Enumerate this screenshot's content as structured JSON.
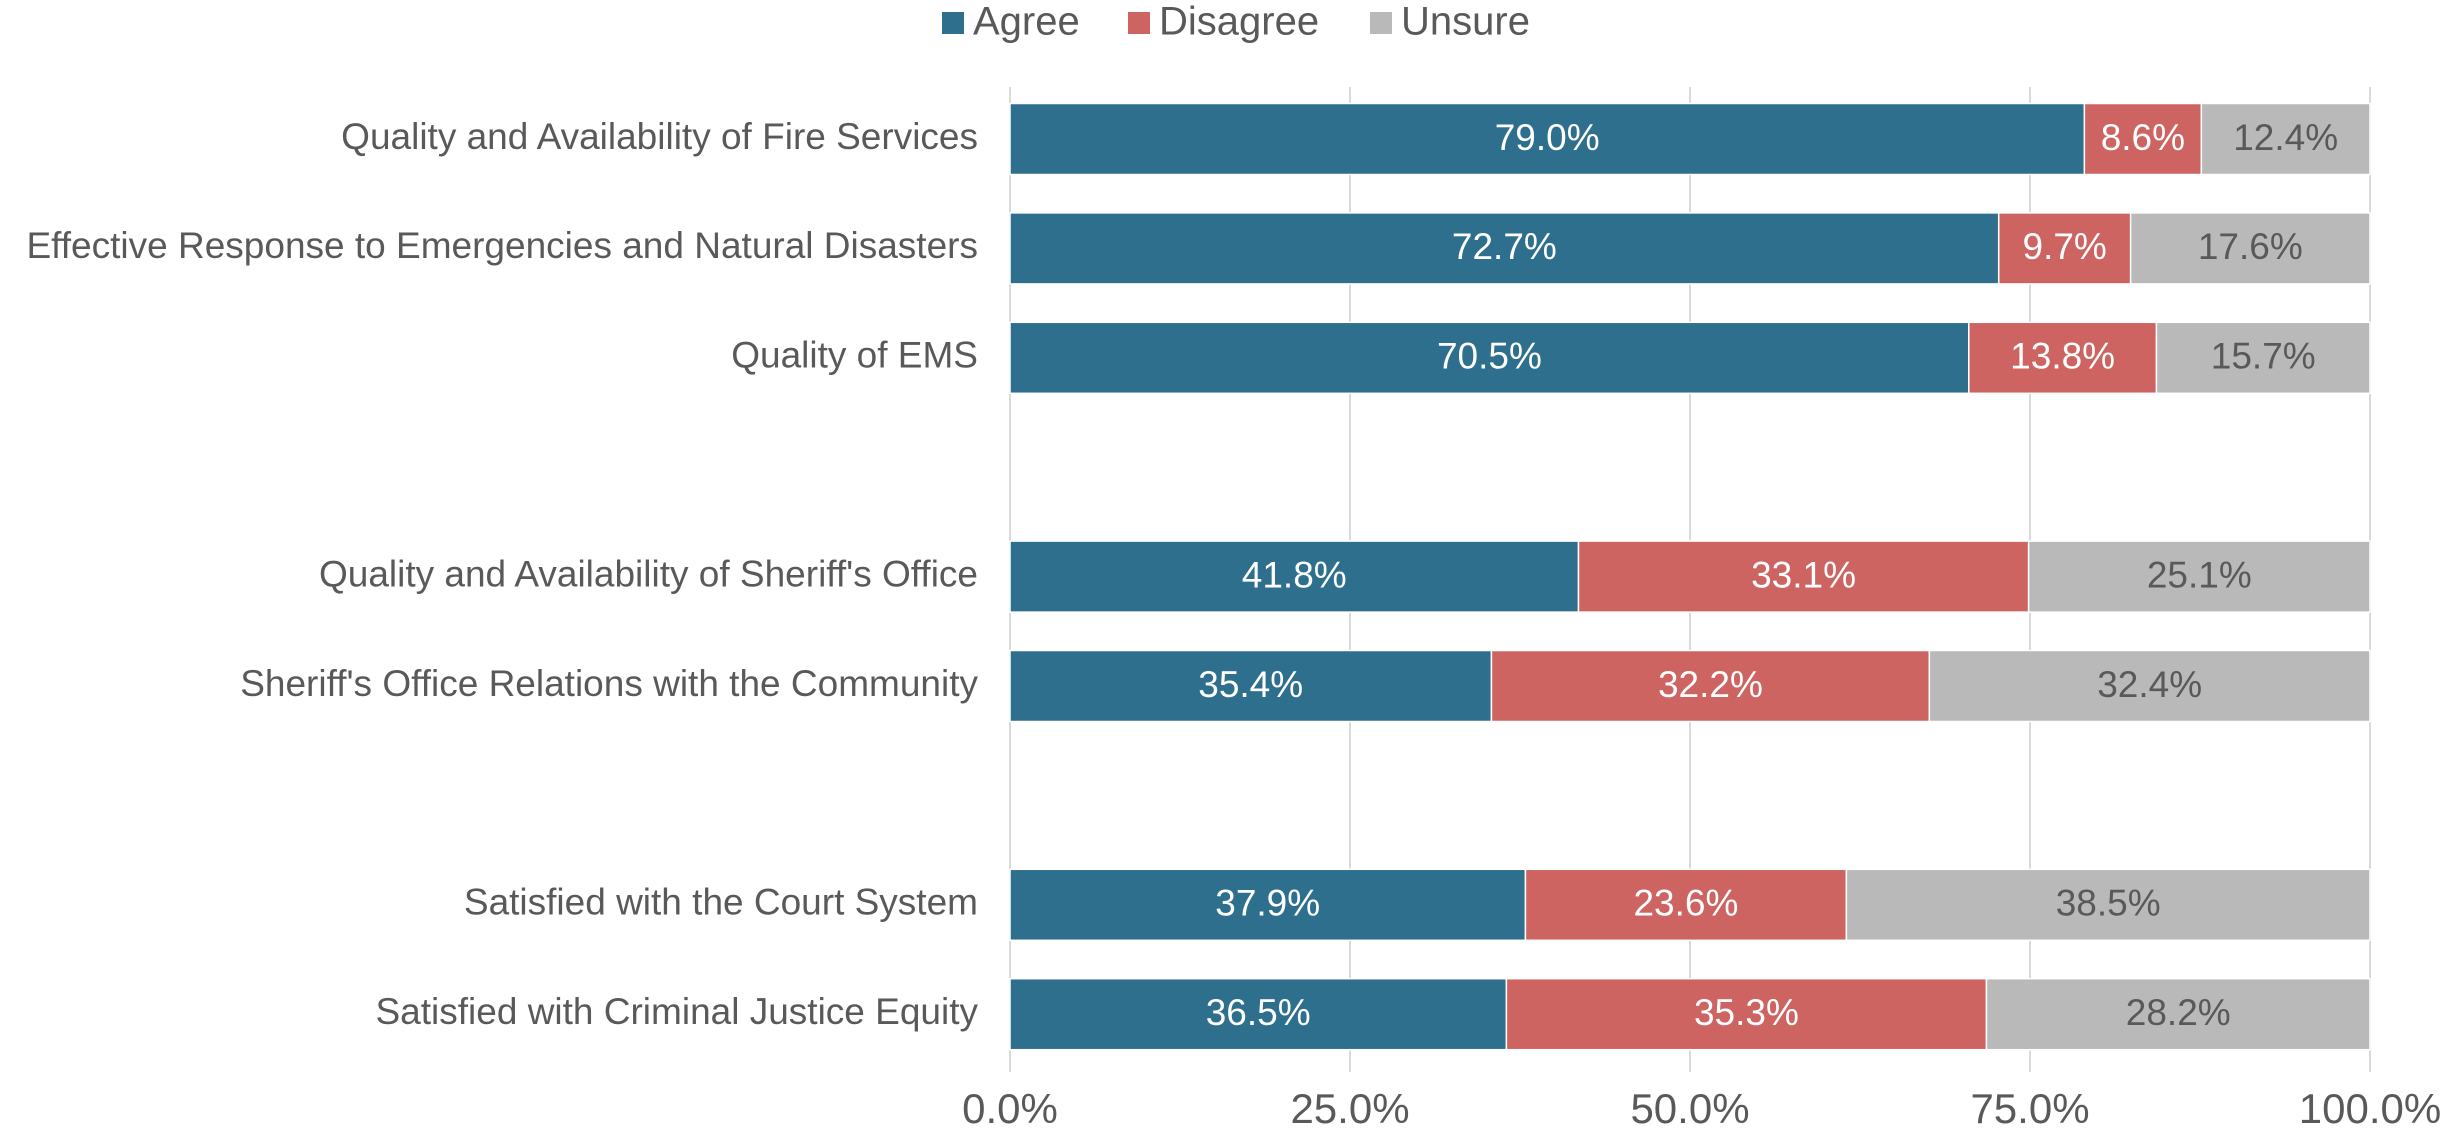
{
  "chart_data": {
    "type": "stacked_bar_horizontal",
    "categories": [
      "Quality and Availability of Fire Services",
      "Effective Response to Emergencies and Natural Disasters",
      "Quality of EMS",
      null,
      "Quality and Availability of Sheriff's Office",
      "Sheriff's Office Relations with the Community",
      null,
      "Satisfied with the Court System",
      "Satisfied with Criminal Justice Equity"
    ],
    "series": [
      {
        "name": "Agree",
        "color": "#2e6f8e",
        "label_color": "#ffffff",
        "values": [
          79.0,
          72.7,
          70.5,
          null,
          41.8,
          35.4,
          null,
          37.9,
          36.5
        ],
        "value_labels": [
          "79.0%",
          "72.7%",
          "70.5%",
          null,
          "41.8%",
          "35.4%",
          null,
          "37.9%",
          "36.5%"
        ]
      },
      {
        "name": "Disagree",
        "color": "#cd6462",
        "label_color": "#ffffff",
        "values": [
          8.6,
          9.7,
          13.8,
          null,
          33.1,
          32.2,
          null,
          23.6,
          35.3
        ],
        "value_labels": [
          "8.6%",
          "9.7%",
          "13.8%",
          null,
          "33.1%",
          "32.2%",
          null,
          "23.6%",
          "35.3%"
        ]
      },
      {
        "name": "Unsure",
        "color": "#b9b9b9",
        "label_color": "#595959",
        "values": [
          12.4,
          17.6,
          15.7,
          null,
          25.1,
          32.4,
          null,
          38.5,
          28.2
        ],
        "value_labels": [
          "12.4%",
          "17.6%",
          "15.7%",
          null,
          "25.1%",
          "32.4%",
          null,
          "38.5%",
          "28.2%"
        ]
      }
    ],
    "xlim": [
      0,
      100
    ],
    "xticks": [
      {
        "value": 0,
        "label": "0.0%"
      },
      {
        "value": 25,
        "label": "25.0%"
      },
      {
        "value": 50,
        "label": "50.0%"
      },
      {
        "value": 75,
        "label": "75.0%"
      },
      {
        "value": 100,
        "label": "100.0%"
      }
    ],
    "grid": true,
    "legend": "top"
  }
}
